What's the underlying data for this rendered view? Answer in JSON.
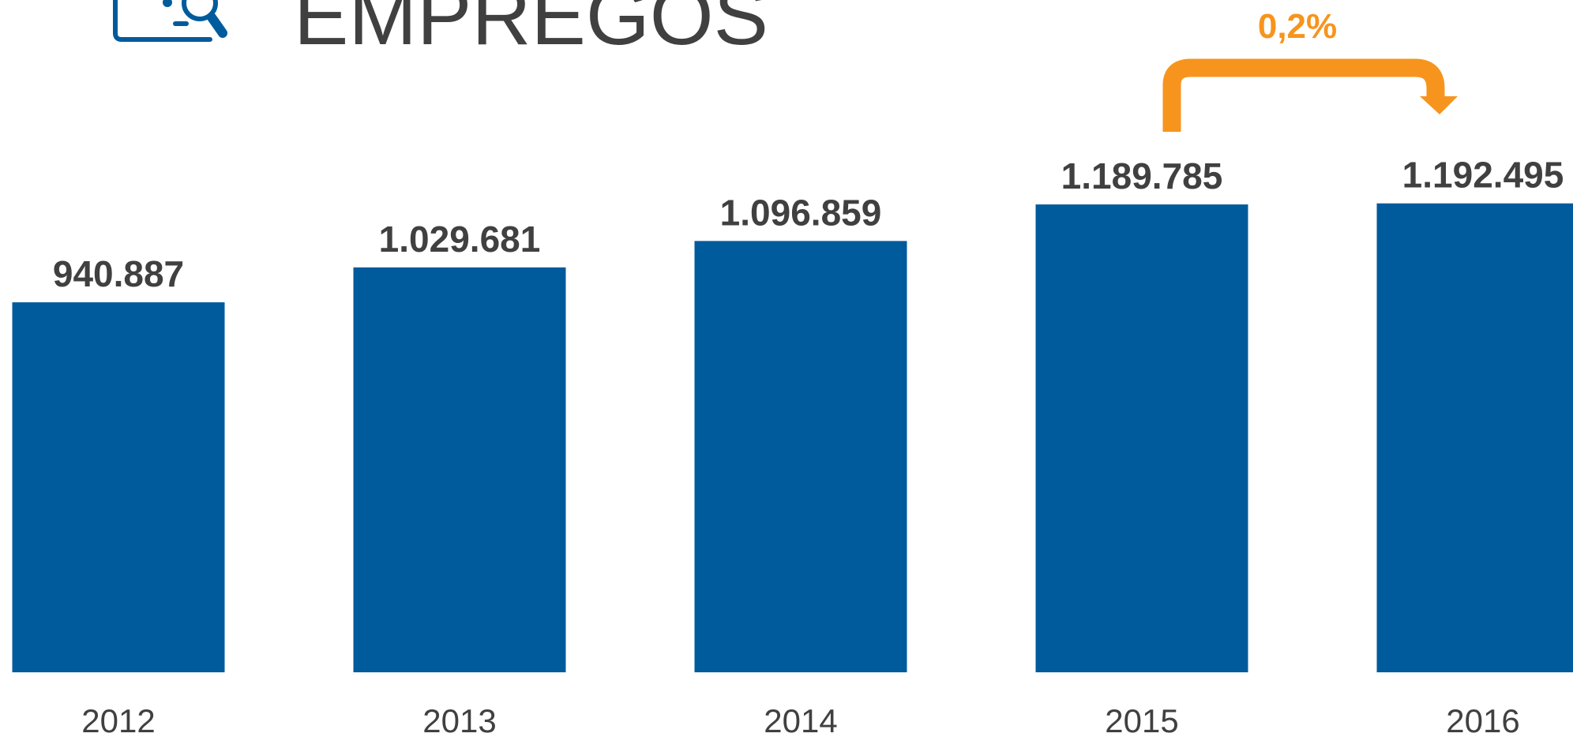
{
  "chart_data": {
    "type": "bar",
    "title": "EMPREGOS",
    "categories": [
      "2012",
      "2013",
      "2014",
      "2015",
      "2016"
    ],
    "values": [
      940887,
      1029681,
      1096859,
      1189785,
      1192495
    ],
    "value_labels": [
      "940.887",
      "1.029.681",
      "1.096.859",
      "1.189.785",
      "1.192.495"
    ],
    "color": "#005b9c",
    "ylim": [
      0,
      1200000
    ],
    "annotation": "0,2%",
    "annotation_color": "#f7941d"
  }
}
